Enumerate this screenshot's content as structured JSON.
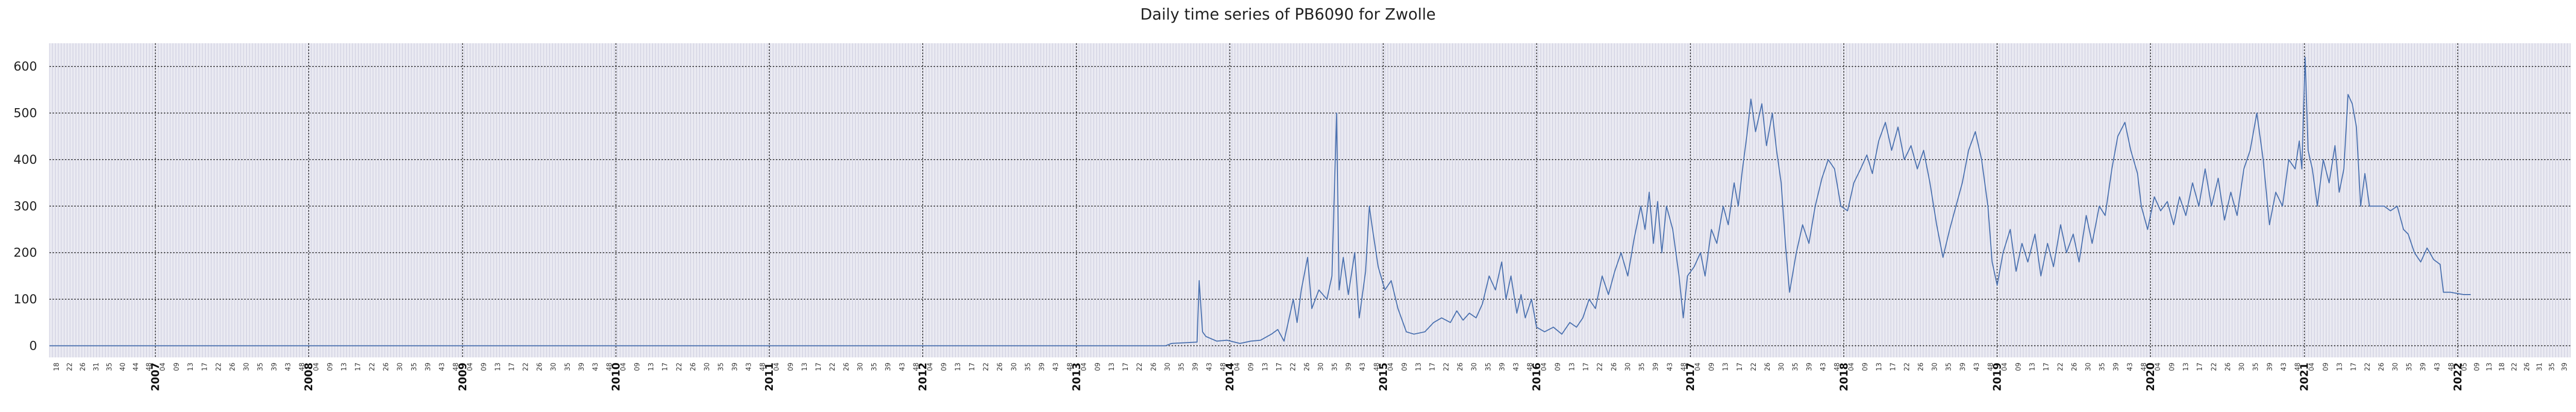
{
  "chart_data": {
    "type": "line",
    "title": "Daily time series of PB6090 for Zwolle",
    "xlabel": "",
    "ylabel": "",
    "x_range": [
      "2006-04-24",
      "2022-09-26"
    ],
    "ylim": [
      -25,
      650
    ],
    "y_ticks": [
      0,
      100,
      200,
      300,
      400,
      500,
      600
    ],
    "year_ticks": [
      "2007",
      "2008",
      "2009",
      "2010",
      "2011",
      "2012",
      "2013",
      "2014",
      "2015",
      "2016",
      "2017",
      "2018",
      "2019",
      "2020",
      "2021",
      "2022"
    ],
    "week_labels_first_year": [
      "18",
      "22",
      "26",
      "31",
      "35",
      "40",
      "44",
      "48"
    ],
    "week_labels_year": [
      "04",
      "09",
      "13",
      "17",
      "22",
      "26",
      "30",
      "35",
      "39",
      "43",
      "48"
    ],
    "week_labels_last_year": [
      "05",
      "09",
      "13",
      "18",
      "22",
      "26",
      "31",
      "35",
      "39"
    ],
    "grid": true,
    "legend": "none",
    "line_color": "#4c72b0",
    "grid_color": "#222222",
    "background_color": "#eaeaf2",
    "series": [
      {
        "points": [
          [
            "2006-04-24",
            0
          ],
          [
            "2013-08-01",
            0
          ],
          [
            "2013-08-15",
            5
          ],
          [
            "2013-10-15",
            8
          ],
          [
            "2013-10-20",
            140
          ],
          [
            "2013-10-28",
            30
          ],
          [
            "2013-11-05",
            20
          ],
          [
            "2013-12-01",
            10
          ],
          [
            "2013-12-25",
            12
          ],
          [
            "2014-01-25",
            5
          ],
          [
            "2014-02-20",
            10
          ],
          [
            "2014-03-15",
            12
          ],
          [
            "2014-04-10",
            25
          ],
          [
            "2014-04-25",
            35
          ],
          [
            "2014-05-10",
            10
          ],
          [
            "2014-06-01",
            100
          ],
          [
            "2014-06-10",
            50
          ],
          [
            "2014-06-20",
            120
          ],
          [
            "2014-07-05",
            190
          ],
          [
            "2014-07-15",
            80
          ],
          [
            "2014-08-01",
            120
          ],
          [
            "2014-08-20",
            100
          ],
          [
            "2014-09-01",
            150
          ],
          [
            "2014-09-12",
            500
          ],
          [
            "2014-09-18",
            120
          ],
          [
            "2014-09-28",
            190
          ],
          [
            "2014-10-10",
            110
          ],
          [
            "2014-10-25",
            200
          ],
          [
            "2014-11-05",
            60
          ],
          [
            "2014-11-20",
            160
          ],
          [
            "2014-11-29",
            300
          ],
          [
            "2014-12-05",
            260
          ],
          [
            "2014-12-20",
            170
          ],
          [
            "2015-01-05",
            120
          ],
          [
            "2015-01-20",
            140
          ],
          [
            "2015-02-05",
            80
          ],
          [
            "2015-02-25",
            30
          ],
          [
            "2015-03-15",
            25
          ],
          [
            "2015-04-10",
            30
          ],
          [
            "2015-05-01",
            50
          ],
          [
            "2015-05-20",
            60
          ],
          [
            "2015-06-10",
            50
          ],
          [
            "2015-06-25",
            75
          ],
          [
            "2015-07-10",
            55
          ],
          [
            "2015-07-25",
            70
          ],
          [
            "2015-08-10",
            60
          ],
          [
            "2015-08-25",
            90
          ],
          [
            "2015-09-10",
            150
          ],
          [
            "2015-09-25",
            120
          ],
          [
            "2015-10-10",
            180
          ],
          [
            "2015-10-20",
            100
          ],
          [
            "2015-11-01",
            150
          ],
          [
            "2015-11-15",
            70
          ],
          [
            "2015-11-25",
            110
          ],
          [
            "2015-12-05",
            60
          ],
          [
            "2015-12-20",
            100
          ],
          [
            "2016-01-01",
            40
          ],
          [
            "2016-01-20",
            30
          ],
          [
            "2016-02-10",
            40
          ],
          [
            "2016-03-01",
            25
          ],
          [
            "2016-03-20",
            50
          ],
          [
            "2016-04-05",
            40
          ],
          [
            "2016-04-20",
            60
          ],
          [
            "2016-05-05",
            100
          ],
          [
            "2016-05-20",
            80
          ],
          [
            "2016-06-05",
            150
          ],
          [
            "2016-06-20",
            110
          ],
          [
            "2016-07-05",
            160
          ],
          [
            "2016-07-20",
            200
          ],
          [
            "2016-08-05",
            150
          ],
          [
            "2016-08-20",
            230
          ],
          [
            "2016-09-05",
            300
          ],
          [
            "2016-09-15",
            250
          ],
          [
            "2016-09-25",
            330
          ],
          [
            "2016-10-05",
            220
          ],
          [
            "2016-10-15",
            310
          ],
          [
            "2016-10-25",
            200
          ],
          [
            "2016-11-05",
            300
          ],
          [
            "2016-11-20",
            250
          ],
          [
            "2016-12-05",
            150
          ],
          [
            "2016-12-15",
            60
          ],
          [
            "2016-12-25",
            150
          ],
          [
            "2017-01-10",
            170
          ],
          [
            "2017-01-25",
            200
          ],
          [
            "2017-02-05",
            150
          ],
          [
            "2017-02-20",
            250
          ],
          [
            "2017-03-05",
            220
          ],
          [
            "2017-03-20",
            300
          ],
          [
            "2017-04-01",
            260
          ],
          [
            "2017-04-15",
            350
          ],
          [
            "2017-04-25",
            300
          ],
          [
            "2017-05-05",
            380
          ],
          [
            "2017-05-15",
            450
          ],
          [
            "2017-05-25",
            530
          ],
          [
            "2017-06-05",
            460
          ],
          [
            "2017-06-20",
            520
          ],
          [
            "2017-07-01",
            430
          ],
          [
            "2017-07-15",
            500
          ],
          [
            "2017-07-25",
            420
          ],
          [
            "2017-08-05",
            350
          ],
          [
            "2017-08-15",
            220
          ],
          [
            "2017-08-25",
            115
          ],
          [
            "2017-09-10",
            200
          ],
          [
            "2017-09-25",
            260
          ],
          [
            "2017-10-10",
            220
          ],
          [
            "2017-10-25",
            300
          ],
          [
            "2017-11-10",
            360
          ],
          [
            "2017-11-25",
            400
          ],
          [
            "2017-12-10",
            380
          ],
          [
            "2017-12-25",
            300
          ],
          [
            "2018-01-10",
            290
          ],
          [
            "2018-01-25",
            350
          ],
          [
            "2018-02-10",
            380
          ],
          [
            "2018-02-25",
            410
          ],
          [
            "2018-03-10",
            370
          ],
          [
            "2018-03-25",
            440
          ],
          [
            "2018-04-10",
            480
          ],
          [
            "2018-04-25",
            420
          ],
          [
            "2018-05-10",
            470
          ],
          [
            "2018-05-25",
            400
          ],
          [
            "2018-06-10",
            430
          ],
          [
            "2018-06-25",
            380
          ],
          [
            "2018-07-10",
            420
          ],
          [
            "2018-07-25",
            350
          ],
          [
            "2018-08-10",
            260
          ],
          [
            "2018-08-25",
            190
          ],
          [
            "2018-09-10",
            250
          ],
          [
            "2018-09-25",
            300
          ],
          [
            "2018-10-10",
            350
          ],
          [
            "2018-10-25",
            420
          ],
          [
            "2018-11-10",
            460
          ],
          [
            "2018-11-25",
            400
          ],
          [
            "2018-12-10",
            300
          ],
          [
            "2018-12-20",
            180
          ],
          [
            "2019-01-01",
            130
          ],
          [
            "2019-01-15",
            200
          ],
          [
            "2019-02-01",
            250
          ],
          [
            "2019-02-15",
            160
          ],
          [
            "2019-03-01",
            220
          ],
          [
            "2019-03-15",
            180
          ],
          [
            "2019-04-01",
            240
          ],
          [
            "2019-04-15",
            150
          ],
          [
            "2019-05-01",
            220
          ],
          [
            "2019-05-15",
            170
          ],
          [
            "2019-06-01",
            260
          ],
          [
            "2019-06-15",
            200
          ],
          [
            "2019-07-01",
            240
          ],
          [
            "2019-07-15",
            180
          ],
          [
            "2019-08-01",
            280
          ],
          [
            "2019-08-15",
            220
          ],
          [
            "2019-09-01",
            300
          ],
          [
            "2019-09-15",
            280
          ],
          [
            "2019-10-01",
            380
          ],
          [
            "2019-10-15",
            450
          ],
          [
            "2019-11-01",
            480
          ],
          [
            "2019-11-15",
            420
          ],
          [
            "2019-12-01",
            370
          ],
          [
            "2019-12-10",
            300
          ],
          [
            "2019-12-25",
            250
          ],
          [
            "2020-01-10",
            320
          ],
          [
            "2020-01-25",
            290
          ],
          [
            "2020-02-10",
            310
          ],
          [
            "2020-02-25",
            260
          ],
          [
            "2020-03-10",
            320
          ],
          [
            "2020-03-25",
            280
          ],
          [
            "2020-04-10",
            350
          ],
          [
            "2020-04-25",
            300
          ],
          [
            "2020-05-10",
            380
          ],
          [
            "2020-05-25",
            300
          ],
          [
            "2020-06-10",
            360
          ],
          [
            "2020-06-25",
            270
          ],
          [
            "2020-07-10",
            330
          ],
          [
            "2020-07-25",
            280
          ],
          [
            "2020-08-10",
            380
          ],
          [
            "2020-08-25",
            420
          ],
          [
            "2020-09-10",
            500
          ],
          [
            "2020-09-25",
            400
          ],
          [
            "2020-10-10",
            260
          ],
          [
            "2020-10-25",
            330
          ],
          [
            "2020-11-10",
            300
          ],
          [
            "2020-11-25",
            400
          ],
          [
            "2020-12-10",
            380
          ],
          [
            "2020-12-20",
            440
          ],
          [
            "2020-12-26",
            380
          ],
          [
            "2021-01-03",
            620
          ],
          [
            "2021-01-10",
            420
          ],
          [
            "2021-01-20",
            380
          ],
          [
            "2021-02-01",
            300
          ],
          [
            "2021-02-15",
            400
          ],
          [
            "2021-03-01",
            350
          ],
          [
            "2021-03-15",
            430
          ],
          [
            "2021-03-25",
            330
          ],
          [
            "2021-04-05",
            380
          ],
          [
            "2021-04-15",
            540
          ],
          [
            "2021-04-25",
            520
          ],
          [
            "2021-05-05",
            470
          ],
          [
            "2021-05-15",
            300
          ],
          [
            "2021-05-25",
            370
          ],
          [
            "2021-06-05",
            300
          ],
          [
            "2021-06-25",
            300
          ],
          [
            "2021-07-10",
            300
          ],
          [
            "2021-07-25",
            290
          ],
          [
            "2021-08-10",
            300
          ],
          [
            "2021-08-25",
            250
          ],
          [
            "2021-09-05",
            240
          ],
          [
            "2021-09-20",
            200
          ],
          [
            "2021-10-05",
            180
          ],
          [
            "2021-10-20",
            210
          ],
          [
            "2021-11-05",
            185
          ],
          [
            "2021-11-20",
            175
          ],
          [
            "2021-11-28",
            115
          ],
          [
            "2021-12-15",
            115
          ],
          [
            "2022-01-15",
            110
          ],
          [
            "2022-02-01",
            110
          ]
        ]
      }
    ]
  }
}
